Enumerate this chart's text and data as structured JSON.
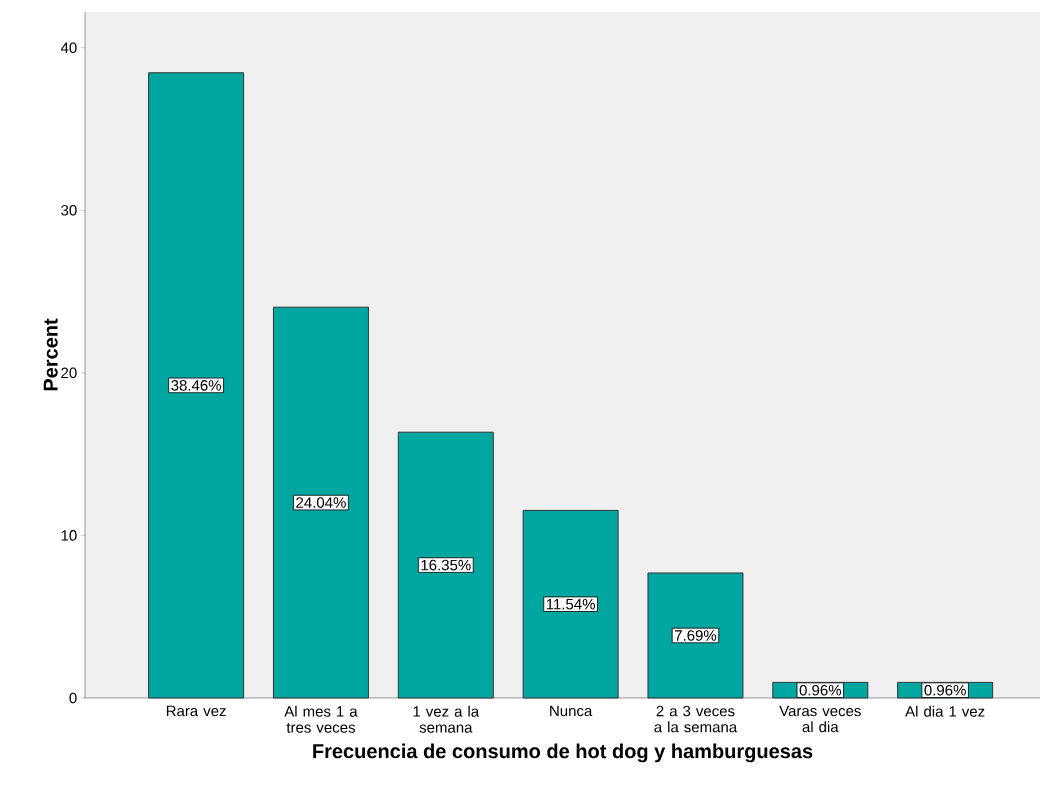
{
  "chart_data": {
    "type": "bar",
    "xlabel": "Frecuencia de consumo de hot dog y hamburguesas",
    "ylabel": "Percent",
    "categories": [
      "Rara vez",
      "Al mes 1 a tres veces",
      "1 vez a la semana",
      "Nunca",
      "2 a 3 veces a la semana",
      "Varas veces al dia",
      "Al dia 1 vez"
    ],
    "values": [
      38.46,
      24.04,
      16.35,
      11.54,
      7.69,
      0.96,
      0.96
    ],
    "value_labels": [
      "38.46%",
      "24.04%",
      "16.35%",
      "11.54%",
      "7.69%",
      "0.96%",
      "0.96%"
    ],
    "color": "#00a6a0",
    "ylim": [
      0,
      42.2
    ],
    "yticks": [
      0,
      10,
      20,
      30,
      40
    ],
    "grid": false
  }
}
